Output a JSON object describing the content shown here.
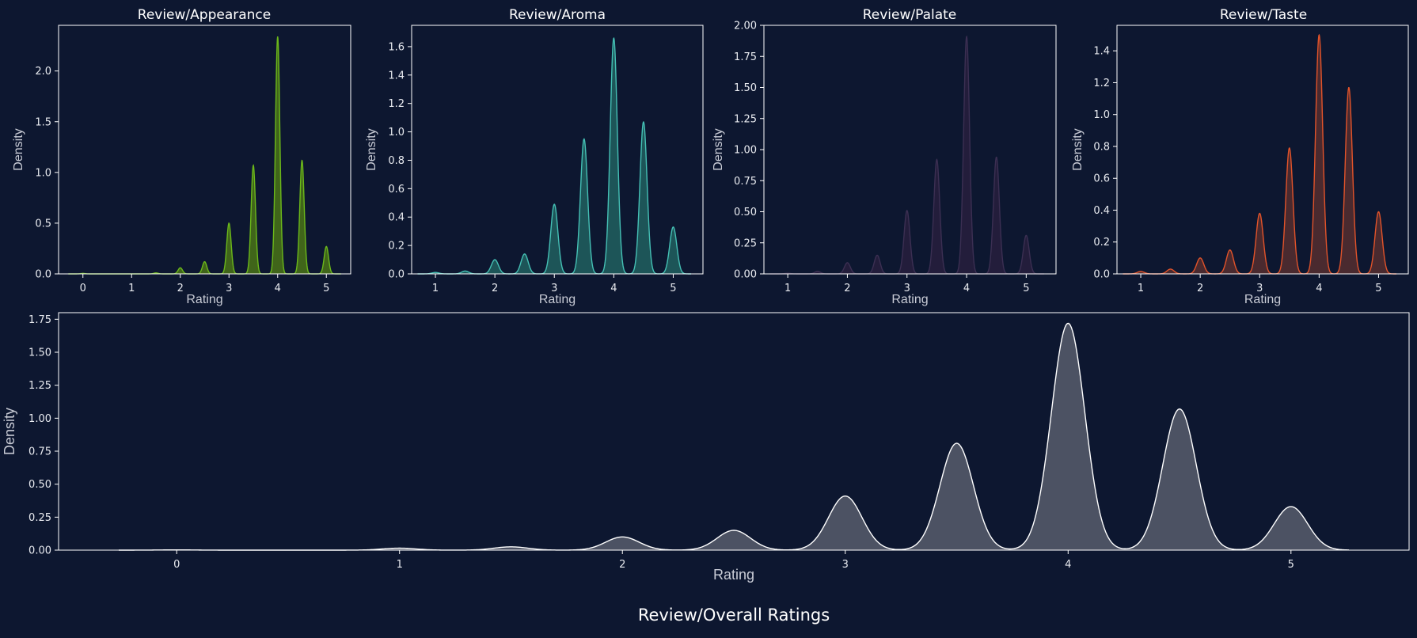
{
  "chart_data": [
    {
      "type": "area",
      "title": "Review/Appearance",
      "xlabel": "Rating",
      "ylabel": "Density",
      "xlim": [
        -0.5,
        5.5
      ],
      "ylim": [
        0,
        2.45
      ],
      "xticks": [
        0,
        1,
        2,
        3,
        4,
        5
      ],
      "xtick_labels": [
        "0",
        "1",
        "2",
        "3",
        "4",
        "5"
      ],
      "yticks": [
        0,
        0.5,
        1.0,
        1.5,
        2.0
      ],
      "ytick_labels": [
        "0.0",
        "0.5",
        "1.0",
        "1.5",
        "2.0"
      ],
      "color": "#6bb81a",
      "fill": "#40651a",
      "bandwidth": 0.045,
      "peaks": {
        "x": [
          0,
          1.5,
          2,
          2.5,
          3,
          3.5,
          4,
          4.5,
          5
        ],
        "y": [
          0.005,
          0.01,
          0.06,
          0.12,
          0.5,
          1.07,
          2.34,
          1.12,
          0.27
        ]
      },
      "grid": false
    },
    {
      "type": "area",
      "title": "Review/Aroma",
      "xlabel": "Rating",
      "ylabel": "Density",
      "xlim": [
        0.6,
        5.5
      ],
      "ylim": [
        0,
        1.75
      ],
      "xticks": [
        1,
        2,
        3,
        4,
        5
      ],
      "xtick_labels": [
        "1",
        "2",
        "3",
        "4",
        "5"
      ],
      "yticks": [
        0,
        0.2,
        0.4,
        0.6,
        0.8,
        1.0,
        1.2,
        1.4,
        1.6
      ],
      "ytick_labels": [
        "0.0",
        "0.2",
        "0.4",
        "0.6",
        "0.8",
        "1.0",
        "1.2",
        "1.4",
        "1.6"
      ],
      "color": "#45c0b5",
      "fill": "#1d5558",
      "bandwidth": 0.06,
      "peaks": {
        "x": [
          1,
          1.5,
          2,
          2.5,
          3,
          3.5,
          4,
          4.5,
          5
        ],
        "y": [
          0.01,
          0.02,
          0.1,
          0.14,
          0.49,
          0.95,
          1.66,
          1.07,
          0.33
        ]
      },
      "grid": false
    },
    {
      "type": "area",
      "title": "Review/Palate",
      "xlabel": "Rating",
      "ylabel": "Density",
      "xlim": [
        0.6,
        5.5
      ],
      "ylim": [
        0,
        2.0
      ],
      "xticks": [
        1,
        2,
        3,
        4,
        5
      ],
      "xtick_labels": [
        "1",
        "2",
        "3",
        "4",
        "5"
      ],
      "yticks": [
        0,
        0.25,
        0.5,
        0.75,
        1.0,
        1.25,
        1.5,
        1.75,
        2.0
      ],
      "ytick_labels": [
        "0.00",
        "0.25",
        "0.50",
        "0.75",
        "1.00",
        "1.25",
        "1.50",
        "1.75",
        "2.00"
      ],
      "color": "#3b2f52",
      "fill": "#231d3b",
      "bandwidth": 0.05,
      "peaks": {
        "x": [
          1,
          1.5,
          2,
          2.5,
          3,
          3.5,
          4,
          4.5,
          5
        ],
        "y": [
          0.005,
          0.02,
          0.09,
          0.15,
          0.51,
          0.92,
          1.91,
          0.94,
          0.31
        ]
      },
      "grid": false
    },
    {
      "type": "area",
      "title": "Review/Taste",
      "xlabel": "Rating",
      "ylabel": "Density",
      "xlim": [
        0.6,
        5.5
      ],
      "ylim": [
        0,
        1.56
      ],
      "xticks": [
        1,
        2,
        3,
        4,
        5
      ],
      "xtick_labels": [
        "1",
        "2",
        "3",
        "4",
        "5"
      ],
      "yticks": [
        0,
        0.2,
        0.4,
        0.6,
        0.8,
        1.0,
        1.2,
        1.4
      ],
      "ytick_labels": [
        "0.0",
        "0.2",
        "0.4",
        "0.6",
        "0.8",
        "1.0",
        "1.2",
        "1.4"
      ],
      "color": "#e2532a",
      "fill": "#4a2a2f",
      "bandwidth": 0.06,
      "peaks": {
        "x": [
          1,
          1.5,
          2,
          2.5,
          3,
          3.5,
          4,
          4.5,
          5
        ],
        "y": [
          0.015,
          0.03,
          0.1,
          0.15,
          0.38,
          0.79,
          1.5,
          1.17,
          0.39
        ]
      },
      "grid": false
    },
    {
      "type": "area",
      "title": "Review/Overall Ratings",
      "xlabel": "Rating",
      "ylabel": "Density",
      "xlim": [
        -0.53,
        5.53
      ],
      "ylim": [
        0,
        1.8
      ],
      "xticks": [
        0,
        1,
        2,
        3,
        4,
        5
      ],
      "xtick_labels": [
        "0",
        "1",
        "2",
        "3",
        "4",
        "5"
      ],
      "yticks": [
        0,
        0.25,
        0.5,
        0.75,
        1.0,
        1.25,
        1.5,
        1.75
      ],
      "ytick_labels": [
        "0.00",
        "0.25",
        "0.50",
        "0.75",
        "1.00",
        "1.25",
        "1.50",
        "1.75"
      ],
      "color": "#ffffff",
      "fill": "#4c5263",
      "bandwidth": 0.075,
      "peaks": {
        "x": [
          0,
          1,
          1.5,
          2,
          2.5,
          3,
          3.5,
          4,
          4.5,
          5
        ],
        "y": [
          0.002,
          0.015,
          0.025,
          0.1,
          0.15,
          0.41,
          0.81,
          1.72,
          1.07,
          0.33
        ]
      },
      "x_range": [
        -0.26,
        5.26
      ],
      "grid": false
    }
  ]
}
